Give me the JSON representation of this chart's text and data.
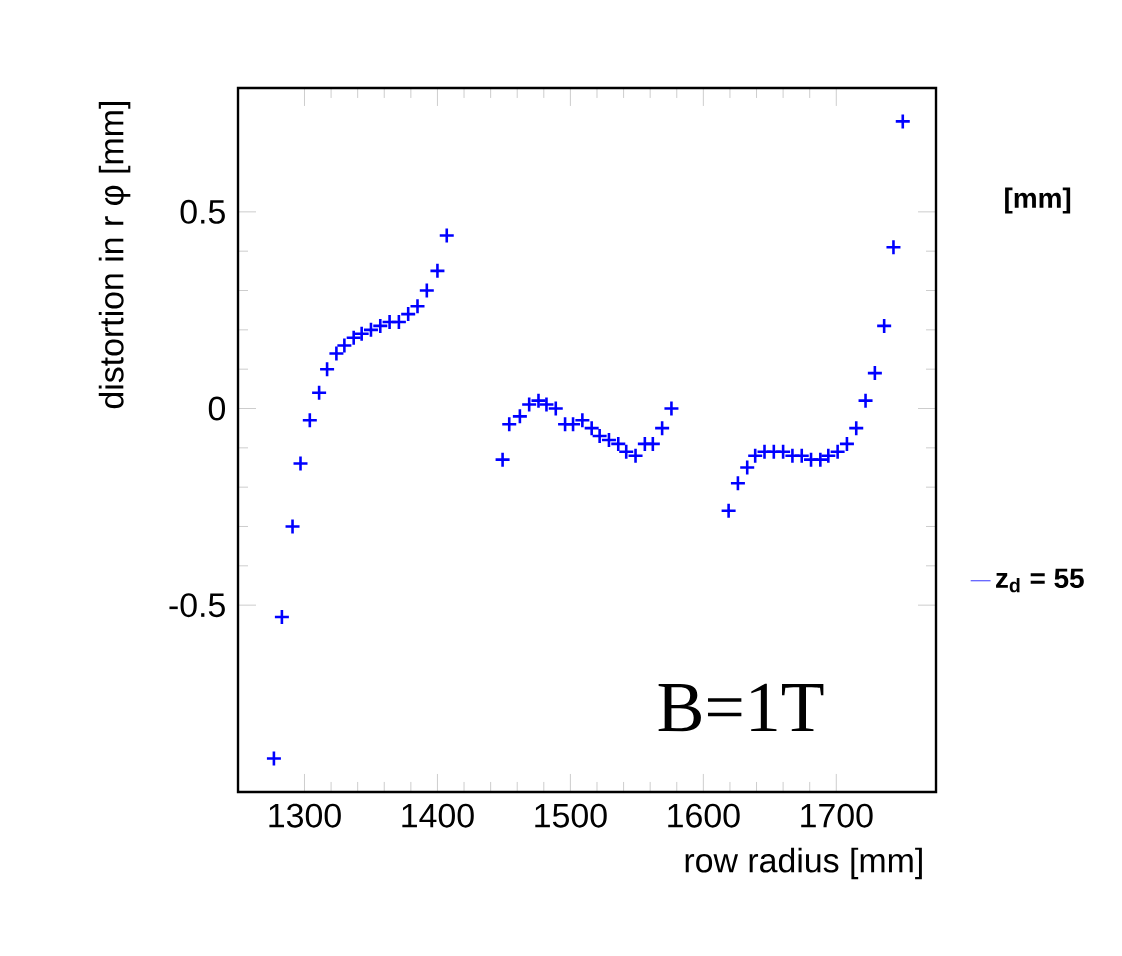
{
  "chart_data": {
    "type": "scatter",
    "xlabel": "row radius [mm]",
    "ylabel": "distortion in r φ [mm]",
    "xlim": [
      1250,
      1775
    ],
    "ylim": [
      -0.975,
      0.815
    ],
    "xticks": [
      1300,
      1400,
      1500,
      1600,
      1700
    ],
    "yticks": [
      -0.5,
      0,
      0.5
    ],
    "marker": "cross",
    "legend": "right",
    "annotations": [
      "[mm]",
      "B=1T"
    ],
    "series": [
      {
        "name": "z$_{d}$ = 55",
        "color": "#0000ff",
        "x": [
          1277,
          1283,
          1291,
          1297,
          1304,
          1311,
          1317,
          1324,
          1330,
          1337,
          1343,
          1350,
          1357,
          1364,
          1371,
          1378,
          1385,
          1392,
          1400,
          1407,
          1449,
          1454,
          1462,
          1469,
          1476,
          1482,
          1489,
          1496,
          1502,
          1509,
          1516,
          1522,
          1529,
          1536,
          1542,
          1549,
          1556,
          1562,
          1569,
          1576,
          1619,
          1626,
          1633,
          1639,
          1646,
          1653,
          1660,
          1667,
          1674,
          1681,
          1688,
          1694,
          1701,
          1708,
          1715,
          1722,
          1729,
          1736,
          1743,
          1750
        ],
        "values": [
          -0.89,
          -0.53,
          -0.3,
          -0.14,
          -0.03,
          0.04,
          0.1,
          0.14,
          0.16,
          0.18,
          0.19,
          0.2,
          0.21,
          0.22,
          0.22,
          0.24,
          0.26,
          0.3,
          0.35,
          0.44,
          -0.13,
          -0.04,
          -0.02,
          0.01,
          0.02,
          0.01,
          0,
          -0.04,
          -0.04,
          -0.03,
          -0.05,
          -0.07,
          -0.08,
          -0.09,
          -0.11,
          -0.12,
          -0.09,
          -0.09,
          -0.05,
          0,
          -0.26,
          -0.19,
          -0.15,
          -0.12,
          -0.11,
          -0.11,
          -0.11,
          -0.12,
          -0.12,
          -0.13,
          -0.13,
          -0.12,
          -0.11,
          -0.09,
          -0.05,
          0.02,
          0.09,
          0.21,
          0.41,
          0.73
        ]
      }
    ]
  }
}
